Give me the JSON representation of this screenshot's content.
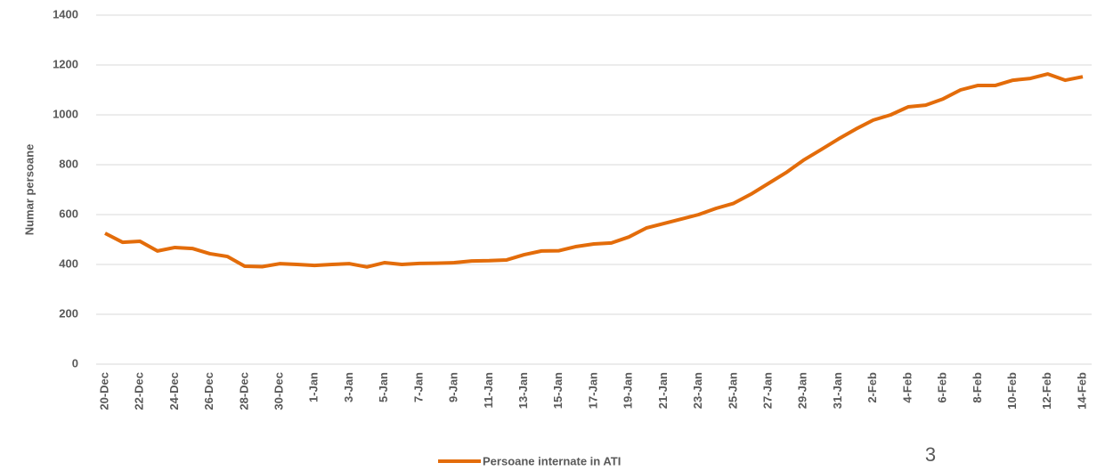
{
  "chart_data": {
    "type": "line",
    "y_label": "Numar persoane",
    "annotation": "3",
    "categories": [
      "20-Dec",
      null,
      "22-Dec",
      null,
      "24-Dec",
      null,
      "26-Dec",
      null,
      "28-Dec",
      null,
      "30-Dec",
      null,
      "1-Jan",
      null,
      "3-Jan",
      null,
      "5-Jan",
      null,
      "7-Jan",
      null,
      "9-Jan",
      null,
      "11-Jan",
      null,
      "13-Jan",
      null,
      "15-Jan",
      null,
      "17-Jan",
      null,
      "19-Jan",
      null,
      "21-Jan",
      null,
      "23-Jan",
      null,
      "25-Jan",
      null,
      "27-Jan",
      null,
      "29-Jan",
      null,
      "31-Jan",
      null,
      "2-Feb",
      null,
      "4-Feb",
      null,
      "6-Feb",
      null,
      "8-Feb",
      null,
      "10-Feb",
      null,
      "12-Feb",
      null,
      "14-Feb"
    ],
    "series": [
      {
        "name": "Persoane internate in ATI",
        "color": "#e36c0a",
        "values": [
          525,
          489,
          493,
          454,
          468,
          464,
          443,
          432,
          393,
          391,
          403,
          400,
          396,
          400,
          403,
          390,
          407,
          400,
          404,
          405,
          407,
          414,
          415,
          418,
          439,
          454,
          455,
          472,
          482,
          486,
          510,
          546,
          564,
          582,
          600,
          625,
          645,
          682,
          725,
          768,
          818,
          860,
          903,
          943,
          979,
          1000,
          1032,
          1039,
          1064,
          1100,
          1118,
          1118,
          1139,
          1146,
          1164,
          1139,
          1153
        ]
      }
    ],
    "ylim": [
      0,
      1400
    ],
    "yticks": [
      0,
      200,
      400,
      600,
      800,
      1000,
      1200,
      1400
    ],
    "grid": true,
    "legend": "bottom"
  }
}
